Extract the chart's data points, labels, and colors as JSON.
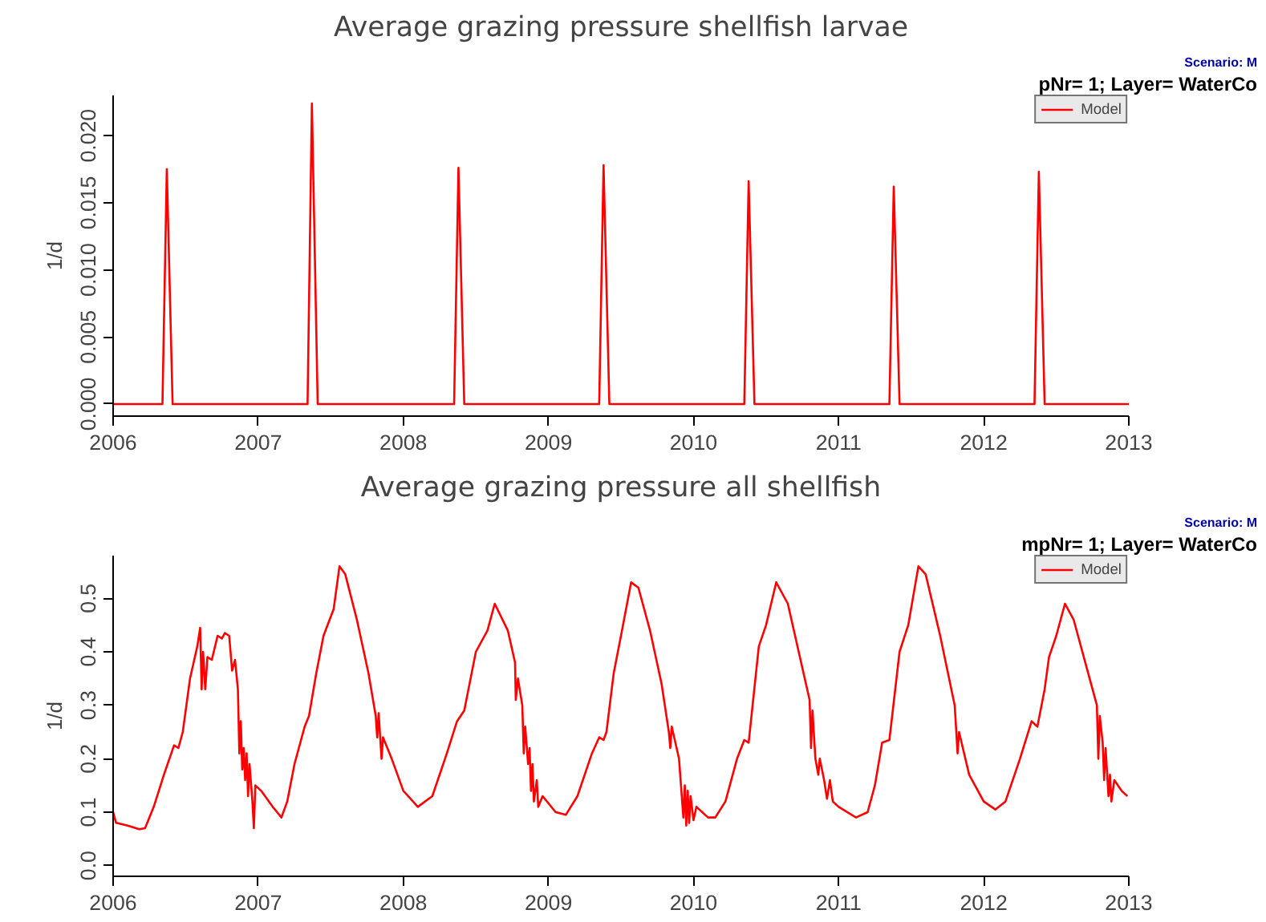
{
  "chart_data": [
    {
      "type": "line",
      "title": "Average grazing pressure shellfish larvae",
      "ylabel": "1/d",
      "annotations": [
        "pNr= 1; Layer= WaterCo",
        "Scenario: M"
      ],
      "xlim": [
        2006,
        2013
      ],
      "xticks": [
        2006,
        2007,
        2008,
        2009,
        2010,
        2011,
        2012,
        2013
      ],
      "ylim": [
        -0.0009,
        0.023
      ],
      "yticks": [
        {
          "value": 0,
          "label": "0.000"
        },
        {
          "value": 0.005,
          "label": "0.005"
        },
        {
          "value": 0.01,
          "label": "0.010"
        },
        {
          "value": 0.015,
          "label": "0.015"
        },
        {
          "value": 0.02,
          "label": "0.020"
        }
      ],
      "grid": false,
      "legend": "top right",
      "line_style": "solid",
      "series": [
        {
          "name": "Model",
          "color": "#ff0000",
          "x": [
            2006,
            2006.34,
            2006.37,
            2006.41,
            2007.34,
            2007.37,
            2007.41,
            2008.35,
            2008.38,
            2008.42,
            2009.35,
            2009.38,
            2009.42,
            2010.35,
            2010.38,
            2010.42,
            2011.35,
            2011.38,
            2011.42,
            2012.35,
            2012.38,
            2012.42,
            2013
          ],
          "values": [
            0,
            0,
            0.0175,
            0,
            0,
            0.0224,
            0,
            0,
            0.0176,
            0,
            0,
            0.0178,
            0,
            0,
            0.0166,
            0,
            0,
            0.0162,
            0,
            0,
            0.0173,
            0,
            0
          ]
        }
      ]
    },
    {
      "type": "line",
      "title": "Average grazing pressure all shellfish",
      "ylabel": "1/d",
      "annotations": [
        "mpNr= 1; Layer= WaterCo",
        "Scenario: M"
      ],
      "xlim": [
        2006,
        2013
      ],
      "xticks": [
        2006,
        2007,
        2008,
        2009,
        2010,
        2011,
        2012,
        2013
      ],
      "ylim": [
        -0.02,
        0.58
      ],
      "yticks": [
        {
          "value": 0,
          "label": "0.0"
        },
        {
          "value": 0.1,
          "label": "0.1"
        },
        {
          "value": 0.2,
          "label": "0.2"
        },
        {
          "value": 0.3,
          "label": "0.3"
        },
        {
          "value": 0.4,
          "label": "0.4"
        },
        {
          "value": 0.5,
          "label": "0.5"
        }
      ],
      "grid": false,
      "legend": "top right",
      "line_style": "solid",
      "series": [
        {
          "name": "Model",
          "color": "#ff0000",
          "x": [
            2006.0,
            2006.02,
            2006.1,
            2006.18,
            2006.22,
            2006.28,
            2006.35,
            2006.42,
            2006.45,
            2006.48,
            2006.53,
            2006.58,
            2006.6,
            2006.61,
            2006.62,
            2006.635,
            2006.65,
            2006.68,
            2006.72,
            2006.75,
            2006.77,
            2006.8,
            2006.82,
            2006.84,
            2006.86,
            2006.87,
            2006.88,
            2006.89,
            2006.9,
            2006.91,
            2006.92,
            2006.93,
            2006.94,
            2006.96,
            2006.97,
            2006.98,
            2007.02,
            2007.1,
            2007.13,
            2007.16,
            2007.2,
            2007.25,
            2007.32,
            2007.35,
            2007.4,
            2007.45,
            2007.52,
            2007.56,
            2007.6,
            2007.68,
            2007.76,
            2007.81,
            2007.82,
            2007.83,
            2007.85,
            2007.86,
            2007.92,
            2008.0,
            2008.1,
            2008.2,
            2008.3,
            2008.37,
            2008.42,
            2008.5,
            2008.58,
            2008.63,
            2008.72,
            2008.77,
            2008.775,
            2008.79,
            2008.82,
            2008.83,
            2008.84,
            2008.86,
            2008.87,
            2008.88,
            2008.89,
            2008.9,
            2008.92,
            2008.93,
            2008.96,
            2009.05,
            2009.12,
            2009.2,
            2009.3,
            2009.35,
            2009.38,
            2009.4,
            2009.45,
            2009.5,
            2009.57,
            2009.62,
            2009.7,
            2009.78,
            2009.83,
            2009.84,
            2009.85,
            2009.9,
            2009.93,
            2009.94,
            2009.95,
            2009.96,
            2009.97,
            2009.98,
            2010.0,
            2010.02,
            2010.1,
            2010.15,
            2010.22,
            2010.3,
            2010.35,
            2010.38,
            2010.45,
            2010.5,
            2010.57,
            2010.65,
            2010.75,
            2010.8,
            2010.81,
            2010.82,
            2010.84,
            2010.86,
            2010.87,
            2010.9,
            2010.92,
            2010.94,
            2010.96,
            2011.0,
            2011.12,
            2011.2,
            2011.25,
            2011.3,
            2011.35,
            2011.42,
            2011.48,
            2011.55,
            2011.6,
            2011.7,
            2011.8,
            2011.82,
            2011.83,
            2011.9,
            2012.0,
            2012.08,
            2012.15,
            2012.25,
            2012.33,
            2012.37,
            2012.42,
            2012.45,
            2012.5,
            2012.56,
            2012.62,
            2012.7,
            2012.78,
            2012.79,
            2012.8,
            2012.82,
            2012.83,
            2012.84,
            2012.86,
            2012.87,
            2012.88,
            2012.9,
            2012.95,
            2012.99
          ],
          "values": [
            0.1,
            0.08,
            0.075,
            0.068,
            0.07,
            0.11,
            0.17,
            0.225,
            0.22,
            0.25,
            0.35,
            0.41,
            0.445,
            0.33,
            0.4,
            0.33,
            0.39,
            0.385,
            0.43,
            0.425,
            0.435,
            0.43,
            0.365,
            0.385,
            0.33,
            0.21,
            0.27,
            0.18,
            0.22,
            0.16,
            0.21,
            0.13,
            0.19,
            0.12,
            0.07,
            0.15,
            0.14,
            0.11,
            0.1,
            0.09,
            0.12,
            0.19,
            0.26,
            0.28,
            0.36,
            0.43,
            0.48,
            0.56,
            0.545,
            0.46,
            0.36,
            0.28,
            0.24,
            0.285,
            0.2,
            0.24,
            0.2,
            0.14,
            0.11,
            0.13,
            0.21,
            0.27,
            0.29,
            0.4,
            0.44,
            0.49,
            0.44,
            0.38,
            0.31,
            0.35,
            0.3,
            0.21,
            0.26,
            0.19,
            0.22,
            0.14,
            0.19,
            0.12,
            0.16,
            0.11,
            0.13,
            0.1,
            0.095,
            0.13,
            0.21,
            0.24,
            0.235,
            0.25,
            0.36,
            0.43,
            0.53,
            0.52,
            0.44,
            0.34,
            0.25,
            0.22,
            0.26,
            0.2,
            0.09,
            0.15,
            0.075,
            0.14,
            0.08,
            0.13,
            0.085,
            0.11,
            0.09,
            0.09,
            0.12,
            0.2,
            0.235,
            0.23,
            0.41,
            0.45,
            0.53,
            0.49,
            0.37,
            0.31,
            0.22,
            0.29,
            0.2,
            0.17,
            0.2,
            0.16,
            0.125,
            0.16,
            0.12,
            0.11,
            0.09,
            0.1,
            0.15,
            0.23,
            0.235,
            0.4,
            0.45,
            0.56,
            0.545,
            0.43,
            0.3,
            0.21,
            0.25,
            0.17,
            0.12,
            0.105,
            0.12,
            0.2,
            0.27,
            0.26,
            0.33,
            0.39,
            0.43,
            0.49,
            0.46,
            0.38,
            0.3,
            0.2,
            0.28,
            0.23,
            0.16,
            0.22,
            0.13,
            0.17,
            0.12,
            0.16,
            0.14,
            0.13
          ]
        }
      ]
    }
  ]
}
